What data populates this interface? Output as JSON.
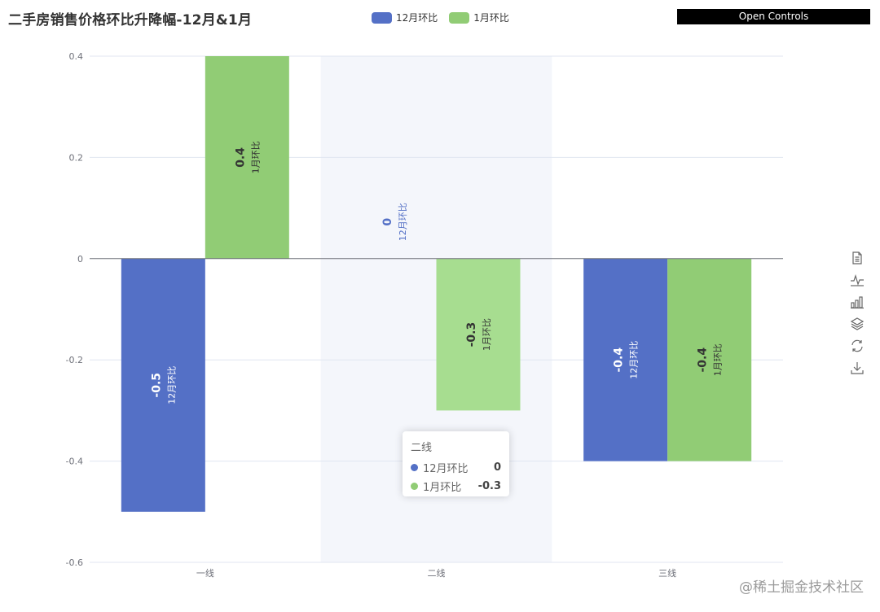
{
  "title": "二手房销售价格环比升降幅-12月&1月",
  "open_controls_label": "Open Controls",
  "watermark": "@稀土掘金技术社区",
  "colors": {
    "series_dec": "#5470c6",
    "series_jan": "#91cc75",
    "axis_label": "#6e7079",
    "grid_line": "#e0e6f1",
    "zero_line": "#6e7079",
    "highlight_band": "#f4f6fb",
    "toolbox_icon": "#666666"
  },
  "legend": [
    {
      "name": "12月环比",
      "color": "#5470c6"
    },
    {
      "name": "1月环比",
      "color": "#91cc75"
    }
  ],
  "toolbox": [
    {
      "name": "data-view-icon"
    },
    {
      "name": "line-chart-icon"
    },
    {
      "name": "bar-chart-icon"
    },
    {
      "name": "stack-icon"
    },
    {
      "name": "restore-icon"
    },
    {
      "name": "save-image-icon"
    }
  ],
  "tooltip": {
    "title": "二线",
    "rows": [
      {
        "name": "12月环比",
        "value": "0",
        "color": "#5470c6"
      },
      {
        "name": "1月环比",
        "value": "-0.3",
        "color": "#91cc75"
      }
    ]
  },
  "chart_data": {
    "type": "bar",
    "title": "二手房销售价格环比升降幅-12月&1月",
    "categories": [
      "一线",
      "二线",
      "三线"
    ],
    "series": [
      {
        "name": "12月环比",
        "values": [
          -0.5,
          0,
          -0.4
        ]
      },
      {
        "name": "1月环比",
        "values": [
          0.4,
          -0.3,
          -0.4
        ]
      }
    ],
    "ylim": [
      -0.6,
      0.4
    ],
    "yticks": [
      -0.6,
      -0.4,
      -0.2,
      0,
      0.2,
      0.4
    ],
    "ytick_labels": [
      "-0.6",
      "-0.4",
      "-0.2",
      "0",
      "0.2",
      "0.4"
    ],
    "highlighted_category": "二线",
    "grid": true,
    "legend_position": "top-center",
    "data_labels": "value + series name, rotated vertical"
  }
}
